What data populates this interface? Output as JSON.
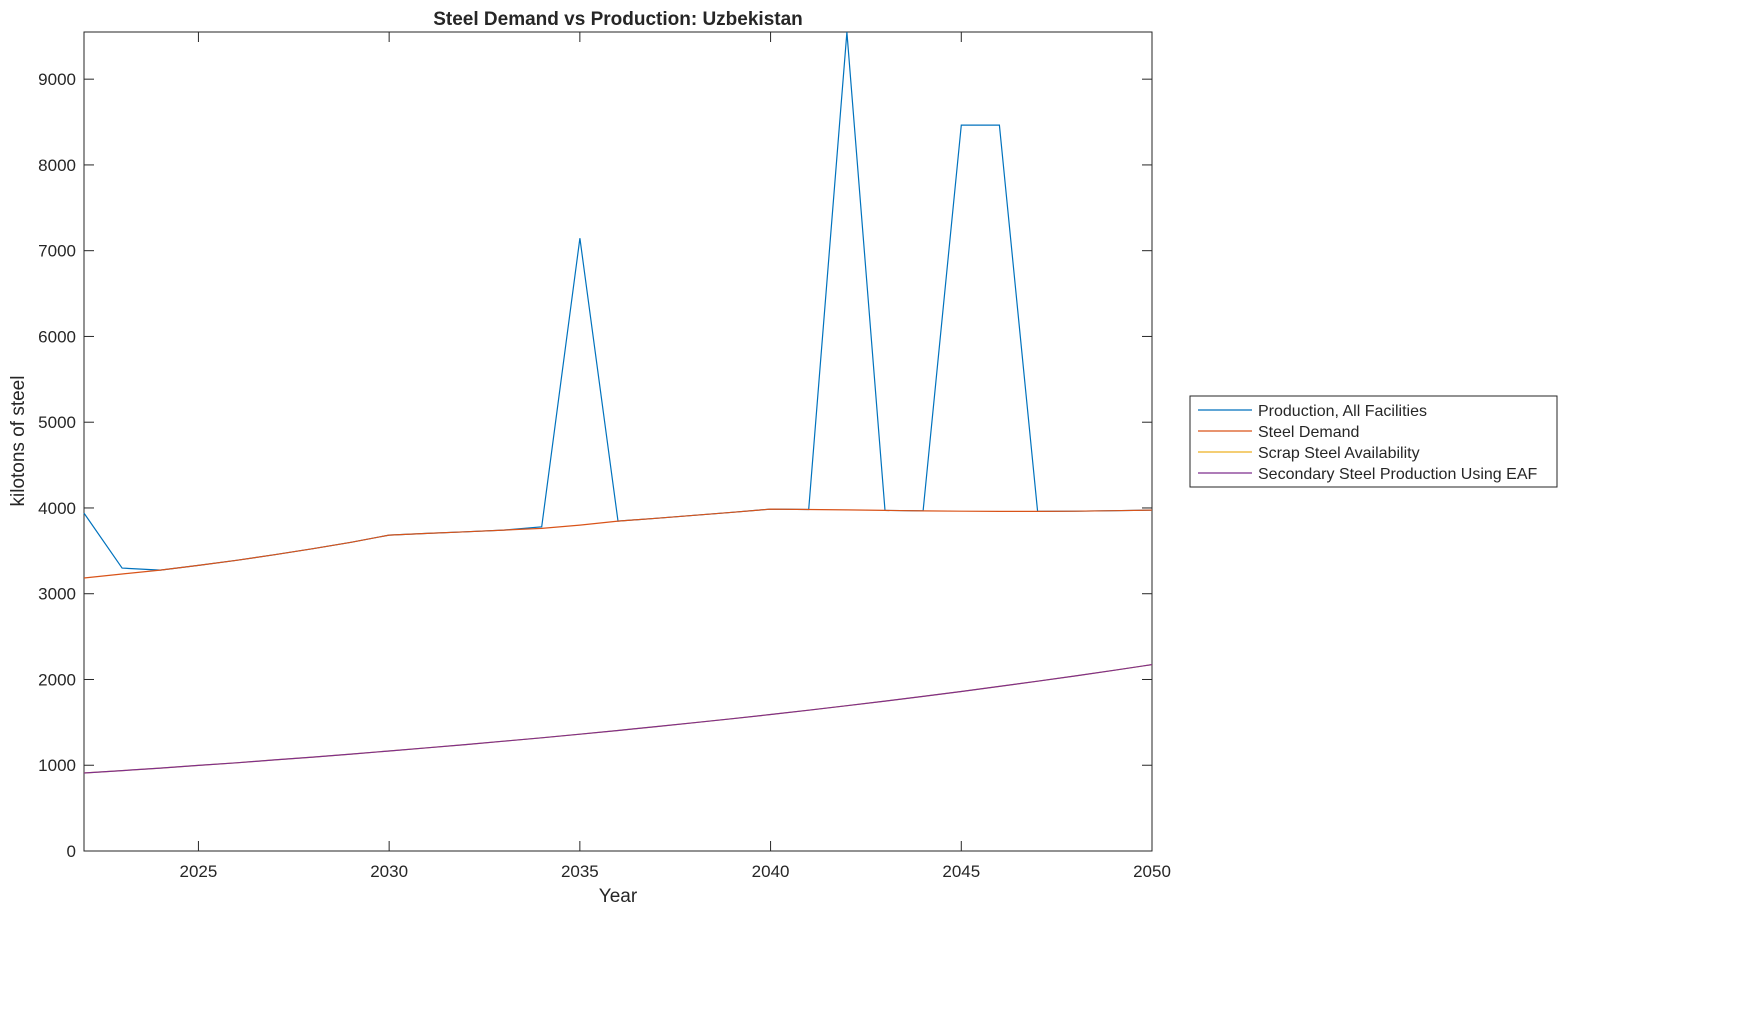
{
  "chart_data": {
    "type": "line",
    "title": "Steel Demand vs Production: Uzbekistan",
    "xlabel": "Year",
    "ylabel": "kilotons of steel",
    "xlim": [
      2022,
      2050
    ],
    "ylim": [
      0,
      9550
    ],
    "xticks": [
      2025,
      2030,
      2035,
      2040,
      2045,
      2050
    ],
    "yticks": [
      0,
      1000,
      2000,
      3000,
      4000,
      5000,
      6000,
      7000,
      8000,
      9000
    ],
    "grid": false,
    "legend_placement": "outside-right",
    "x": [
      2022,
      2023,
      2024,
      2025,
      2026,
      2027,
      2028,
      2029,
      2030,
      2031,
      2032,
      2033,
      2034,
      2035,
      2036,
      2037,
      2038,
      2039,
      2040,
      2041,
      2042,
      2043,
      2044,
      2045,
      2046,
      2047,
      2048,
      2049,
      2050
    ],
    "series": [
      {
        "name": "Production, All Facilities",
        "color": "#0072BD",
        "values": [
          3940,
          3299,
          3276,
          3330,
          3390,
          3455,
          3525,
          3600,
          3684,
          3703,
          3722,
          3742,
          3780,
          7146,
          3847,
          3880,
          3915,
          3950,
          3987,
          3982,
          9548,
          3972,
          3966,
          8464,
          8464,
          3960,
          3962,
          3968,
          3975
        ]
      },
      {
        "name": "Steel Demand",
        "color": "#D95319",
        "values": [
          3183,
          3230,
          3276,
          3330,
          3390,
          3455,
          3525,
          3600,
          3684,
          3703,
          3722,
          3742,
          3762,
          3800,
          3847,
          3880,
          3915,
          3950,
          3987,
          3982,
          3978,
          3972,
          3966,
          3962,
          3960,
          3960,
          3962,
          3968,
          3975
        ]
      },
      {
        "name": "Scrap Steel Availability",
        "color": "#EDB120",
        "values": [
          909,
          938,
          967,
          998,
          1029,
          1062,
          1095,
          1130,
          1166,
          1203,
          1241,
          1280,
          1320,
          1362,
          1405,
          1450,
          1496,
          1543,
          1592,
          1642,
          1694,
          1748,
          1803,
          1860,
          1919,
          1980,
          2042,
          2107,
          2174
        ]
      },
      {
        "name": "Secondary Steel Production Using EAF",
        "color": "#7E2F8E",
        "values": [
          909,
          938,
          967,
          998,
          1029,
          1062,
          1095,
          1130,
          1166,
          1203,
          1241,
          1280,
          1320,
          1362,
          1405,
          1450,
          1496,
          1543,
          1592,
          1642,
          1694,
          1748,
          1803,
          1860,
          1919,
          1980,
          2042,
          2107,
          2174
        ]
      }
    ]
  }
}
